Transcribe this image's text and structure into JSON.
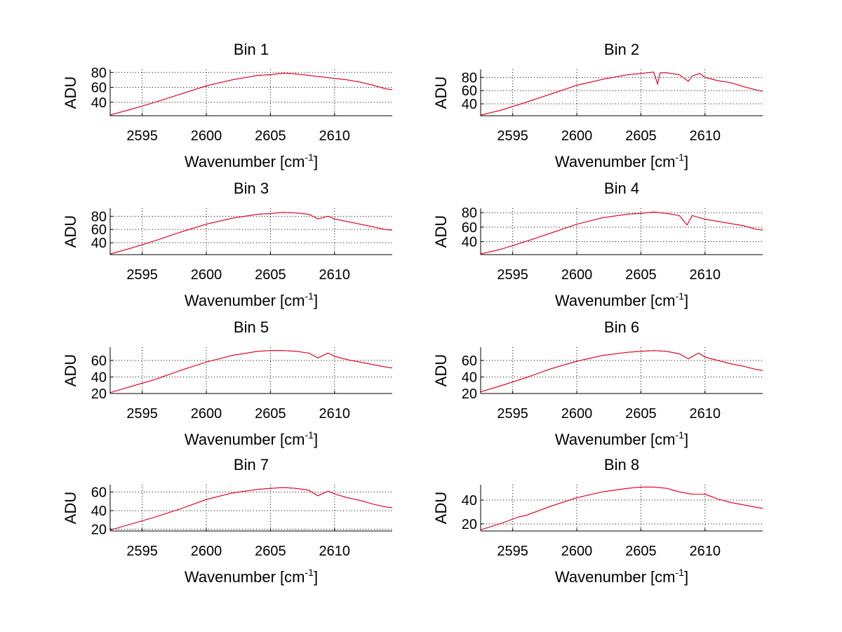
{
  "colors": {
    "background": "#ffffff",
    "series_blue": "#0000ff",
    "series_red": "#ff0000",
    "grid": "#000000",
    "axes": "#000000"
  },
  "figure": {
    "layout": "4 rows x 2 columns of subplots"
  },
  "chart_data": [
    {
      "type": "line",
      "title": "Bin 1",
      "xlabel": "Wavenumber [cm",
      "xlabel_sup": "-1",
      "xlabel_close": "]",
      "ylabel": "ADU",
      "xlim": [
        2592.5,
        2614.5
      ],
      "ylim": [
        22,
        84
      ],
      "xticks": [
        2595,
        2600,
        2605,
        2610
      ],
      "xtick_labels": [
        "2595",
        "2600",
        "2605",
        "2610"
      ],
      "yticks": [
        40,
        60,
        80
      ],
      "ytick_labels": [
        "40",
        "60",
        "80"
      ],
      "grid": true,
      "series": [
        {
          "color": "#0000ff",
          "x": [
            2592.5,
            2594,
            2596,
            2598,
            2600,
            2602,
            2604,
            2605,
            2606,
            2607,
            2608,
            2609,
            2610,
            2611,
            2612,
            2613,
            2614,
            2614.5
          ],
          "y": [
            23,
            30,
            40,
            51,
            62,
            70,
            76,
            77,
            79,
            78,
            76,
            74,
            72,
            70,
            67,
            63,
            58,
            57
          ]
        },
        {
          "color": "#ff0000",
          "x": [
            2592.5,
            2594,
            2596,
            2598,
            2600,
            2602,
            2604,
            2605,
            2606,
            2607,
            2608,
            2609,
            2610,
            2611,
            2612,
            2613,
            2614,
            2614.5
          ],
          "y": [
            23,
            30,
            40,
            51,
            62,
            70,
            76,
            77,
            79,
            78,
            76,
            74,
            72,
            70,
            67,
            63,
            58,
            57
          ]
        }
      ]
    },
    {
      "type": "line",
      "title": "Bin 2",
      "xlabel": "Wavenumber [cm",
      "xlabel_sup": "-1",
      "xlabel_close": "]",
      "ylabel": "ADU",
      "xlim": [
        2592.5,
        2614.5
      ],
      "ylim": [
        22,
        92
      ],
      "xticks": [
        2595,
        2600,
        2605,
        2610
      ],
      "xtick_labels": [
        "2595",
        "2600",
        "2605",
        "2610"
      ],
      "yticks": [
        40,
        60,
        80
      ],
      "ytick_labels": [
        "40",
        "60",
        "80"
      ],
      "grid": true,
      "series": [
        {
          "color": "#0000ff",
          "x": [
            2592.5,
            2594,
            2596,
            2598,
            2600,
            2602,
            2604,
            2605,
            2606,
            2606.3,
            2606.5,
            2607,
            2608,
            2608.7,
            2609,
            2609.6,
            2610,
            2611,
            2612,
            2613,
            2614,
            2614.5
          ],
          "y": [
            23,
            30,
            42,
            55,
            68,
            77,
            84,
            86,
            88,
            70,
            87,
            87,
            84,
            74,
            82,
            86,
            80,
            75,
            72,
            66,
            61,
            59
          ]
        },
        {
          "color": "#ff0000",
          "x": [
            2592.5,
            2594,
            2596,
            2598,
            2600,
            2602,
            2604,
            2605,
            2606,
            2606.3,
            2606.5,
            2607,
            2608,
            2608.7,
            2609,
            2609.6,
            2610,
            2611,
            2612,
            2613,
            2614,
            2614.5
          ],
          "y": [
            23,
            30,
            42,
            55,
            68,
            77,
            84,
            86,
            88,
            70,
            87,
            87,
            84,
            74,
            82,
            86,
            80,
            75,
            72,
            66,
            61,
            59
          ]
        }
      ]
    },
    {
      "type": "line",
      "title": "Bin 3",
      "xlabel": "Wavenumber [cm",
      "xlabel_sup": "-1",
      "xlabel_close": "]",
      "ylabel": "ADU",
      "xlim": [
        2592.5,
        2614.5
      ],
      "ylim": [
        22,
        92
      ],
      "xticks": [
        2595,
        2600,
        2605,
        2610
      ],
      "xtick_labels": [
        "2595",
        "2600",
        "2605",
        "2610"
      ],
      "yticks": [
        40,
        60,
        80
      ],
      "ytick_labels": [
        "40",
        "60",
        "80"
      ],
      "grid": true,
      "series": [
        {
          "color": "#0000ff",
          "x": [
            2592.5,
            2594,
            2596,
            2598,
            2600,
            2602,
            2604,
            2605,
            2606,
            2607,
            2608,
            2608.7,
            2609.5,
            2610,
            2611,
            2612,
            2613,
            2614,
            2614.5
          ],
          "y": [
            23,
            31,
            43,
            56,
            68,
            77,
            83,
            84,
            86,
            85,
            83,
            76,
            80,
            76,
            72,
            68,
            64,
            60,
            59
          ]
        },
        {
          "color": "#ff0000",
          "x": [
            2592.5,
            2594,
            2596,
            2598,
            2600,
            2602,
            2604,
            2605,
            2606,
            2607,
            2608,
            2608.7,
            2609.5,
            2610,
            2611,
            2612,
            2613,
            2614,
            2614.5
          ],
          "y": [
            23,
            31,
            43,
            56,
            68,
            77,
            83,
            84,
            86,
            85,
            83,
            76,
            80,
            76,
            72,
            68,
            64,
            60,
            59
          ]
        }
      ]
    },
    {
      "type": "line",
      "title": "Bin 4",
      "xlabel": "Wavenumber [cm",
      "xlabel_sup": "-1",
      "xlabel_close": "]",
      "ylabel": "ADU",
      "xlim": [
        2592.5,
        2614.5
      ],
      "ylim": [
        22,
        86
      ],
      "xticks": [
        2595,
        2600,
        2605,
        2610
      ],
      "xtick_labels": [
        "2595",
        "2600",
        "2605",
        "2610"
      ],
      "yticks": [
        40,
        60,
        80
      ],
      "ytick_labels": [
        "40",
        "60",
        "80"
      ],
      "grid": true,
      "series": [
        {
          "color": "#0000ff",
          "x": [
            2592.5,
            2594,
            2596,
            2598,
            2600,
            2602,
            2604,
            2605,
            2606,
            2607,
            2608,
            2608.6,
            2609,
            2610,
            2611,
            2612,
            2613,
            2614,
            2614.5
          ],
          "y": [
            23,
            29,
            40,
            52,
            64,
            73,
            78,
            79,
            81,
            79,
            76,
            63,
            76,
            71,
            68,
            65,
            62,
            57,
            56
          ]
        },
        {
          "color": "#ff0000",
          "x": [
            2592.5,
            2594,
            2596,
            2598,
            2600,
            2602,
            2604,
            2605,
            2606,
            2607,
            2608,
            2608.6,
            2609,
            2610,
            2611,
            2612,
            2613,
            2614,
            2614.5
          ],
          "y": [
            23,
            29,
            40,
            52,
            64,
            73,
            78,
            79,
            81,
            79,
            76,
            63,
            76,
            71,
            68,
            65,
            62,
            57,
            56
          ]
        }
      ]
    },
    {
      "type": "line",
      "title": "Bin 5",
      "xlabel": "Wavenumber [cm",
      "xlabel_sup": "-1",
      "xlabel_close": "]",
      "ylabel": "ADU",
      "xlim": [
        2592.5,
        2614.5
      ],
      "ylim": [
        20,
        76
      ],
      "xticks": [
        2595,
        2600,
        2605,
        2610
      ],
      "xtick_labels": [
        "2595",
        "2600",
        "2605",
        "2610"
      ],
      "yticks": [
        20,
        40,
        60
      ],
      "ytick_labels": [
        "20",
        "40",
        "60"
      ],
      "grid": true,
      "series": [
        {
          "color": "#0000ff",
          "x": [
            2592.5,
            2594,
            2596,
            2598,
            2600,
            2602,
            2604,
            2605,
            2606,
            2607,
            2608,
            2608.7,
            2609.5,
            2610,
            2611,
            2612,
            2613,
            2614,
            2614.5
          ],
          "y": [
            21,
            28,
            37,
            48,
            58,
            66,
            71,
            72,
            72,
            71,
            69,
            63,
            69,
            65,
            61,
            58,
            55,
            52,
            51
          ]
        },
        {
          "color": "#ff0000",
          "x": [
            2592.5,
            2594,
            2596,
            2598,
            2600,
            2602,
            2604,
            2605,
            2606,
            2607,
            2608,
            2608.7,
            2609.5,
            2610,
            2611,
            2612,
            2613,
            2614,
            2614.5
          ],
          "y": [
            21,
            28,
            37,
            48,
            58,
            66,
            71,
            72,
            72,
            71,
            69,
            63,
            69,
            65,
            61,
            58,
            55,
            52,
            51
          ]
        }
      ]
    },
    {
      "type": "line",
      "title": "Bin 6",
      "xlabel": "Wavenumber [cm",
      "xlabel_sup": "-1",
      "xlabel_close": "]",
      "ylabel": "ADU",
      "xlim": [
        2592.5,
        2614.5
      ],
      "ylim": [
        20,
        76
      ],
      "xticks": [
        2595,
        2600,
        2605,
        2610
      ],
      "xtick_labels": [
        "2595",
        "2600",
        "2605",
        "2610"
      ],
      "yticks": [
        20,
        40,
        60
      ],
      "ytick_labels": [
        "20",
        "40",
        "60"
      ],
      "grid": true,
      "series": [
        {
          "color": "#0000ff",
          "x": [
            2592.5,
            2594,
            2596,
            2598,
            2600,
            2602,
            2604,
            2605,
            2606,
            2607,
            2608,
            2608.7,
            2609.5,
            2610,
            2611,
            2612,
            2613,
            2614,
            2614.5
          ],
          "y": [
            22,
            29,
            39,
            50,
            59,
            66,
            70,
            71,
            72,
            71,
            68,
            62,
            69,
            64,
            60,
            56,
            53,
            49,
            48
          ]
        },
        {
          "color": "#ff0000",
          "x": [
            2592.5,
            2594,
            2596,
            2598,
            2600,
            2602,
            2604,
            2605,
            2606,
            2607,
            2608,
            2608.7,
            2609.5,
            2610,
            2611,
            2612,
            2613,
            2614,
            2614.5
          ],
          "y": [
            22,
            29,
            39,
            50,
            59,
            66,
            70,
            71,
            72,
            71,
            68,
            62,
            69,
            64,
            60,
            56,
            53,
            49,
            48
          ]
        }
      ]
    },
    {
      "type": "line",
      "title": "Bin 7",
      "xlabel": "Wavenumber [cm",
      "xlabel_sup": "-1",
      "xlabel_close": "]",
      "ylabel": "ADU",
      "xlim": [
        2592.5,
        2614.5
      ],
      "ylim": [
        18,
        68
      ],
      "xticks": [
        2595,
        2600,
        2605,
        2610
      ],
      "xtick_labels": [
        "2595",
        "2600",
        "2605",
        "2610"
      ],
      "yticks": [
        20,
        40,
        60
      ],
      "ytick_labels": [
        "20",
        "40",
        "60"
      ],
      "grid": true,
      "series": [
        {
          "color": "#0000ff",
          "x": [
            2592.5,
            2594,
            2596,
            2598,
            2600,
            2602,
            2604,
            2605,
            2606,
            2607,
            2608,
            2608.7,
            2609.5,
            2610,
            2611,
            2612,
            2613,
            2614,
            2614.5
          ],
          "y": [
            19,
            25,
            33,
            42,
            52,
            59,
            63,
            64,
            65,
            64,
            62,
            56,
            61,
            58,
            54,
            51,
            47,
            44,
            43
          ]
        },
        {
          "color": "#ff0000",
          "x": [
            2592.5,
            2594,
            2596,
            2598,
            2600,
            2602,
            2604,
            2605,
            2606,
            2607,
            2608,
            2608.7,
            2609.5,
            2610,
            2611,
            2612,
            2613,
            2614,
            2614.5
          ],
          "y": [
            19,
            25,
            33,
            42,
            52,
            59,
            63,
            64,
            65,
            64,
            62,
            56,
            61,
            58,
            54,
            51,
            47,
            44,
            43
          ]
        }
      ]
    },
    {
      "type": "line",
      "title": "Bin 8",
      "xlabel": "Wavenumber [cm",
      "xlabel_sup": "-1",
      "xlabel_close": "]",
      "ylabel": "ADU",
      "xlim": [
        2592.5,
        2614.5
      ],
      "ylim": [
        14,
        53
      ],
      "xticks": [
        2595,
        2600,
        2605,
        2610
      ],
      "xtick_labels": [
        "2595",
        "2600",
        "2605",
        "2610"
      ],
      "yticks": [
        20,
        40
      ],
      "ytick_labels": [
        "20",
        "40"
      ],
      "grid": true,
      "series": [
        {
          "color": "#0000ff",
          "x": [
            2592.5,
            2594,
            2595.5,
            2596,
            2598,
            2600,
            2602,
            2604,
            2605,
            2606,
            2607,
            2608,
            2609,
            2610,
            2611,
            2612,
            2613,
            2614,
            2614.5
          ],
          "y": [
            15,
            20,
            26,
            27,
            35,
            42,
            47,
            50,
            51,
            51,
            50,
            47,
            45,
            45,
            41,
            38,
            36,
            34,
            33
          ]
        },
        {
          "color": "#ff0000",
          "x": [
            2592.5,
            2594,
            2595.5,
            2596,
            2598,
            2600,
            2602,
            2604,
            2605,
            2606,
            2607,
            2608,
            2609,
            2610,
            2611,
            2612,
            2613,
            2614,
            2614.5
          ],
          "y": [
            15,
            20,
            26,
            27,
            35,
            42,
            47,
            50,
            51,
            51,
            50,
            47,
            45,
            45,
            41,
            38,
            36,
            34,
            33
          ]
        }
      ]
    }
  ]
}
